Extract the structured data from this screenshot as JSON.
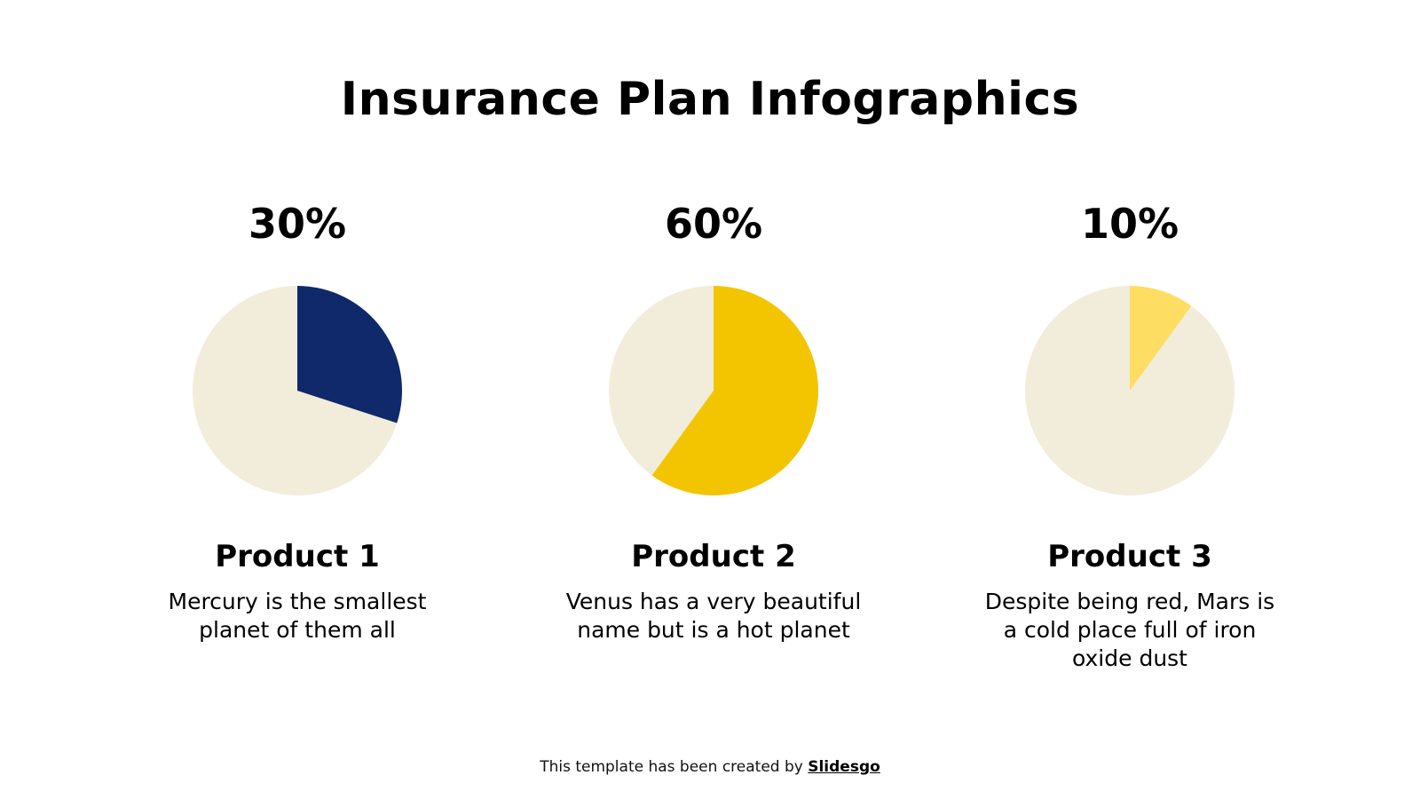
{
  "title": "Insurance Plan Infographics",
  "chart_data": [
    {
      "type": "pie",
      "label": "30%",
      "value": 30,
      "title": "Product 1",
      "description": "Mercury is the smallest planet of them all",
      "accent_color": "#10296b",
      "base_color": "#f2ecdb"
    },
    {
      "type": "pie",
      "label": "60%",
      "value": 60,
      "title": "Product 2",
      "description": "Venus has a very beautiful name but is a hot planet",
      "accent_color": "#f2c500",
      "base_color": "#f2ecdb"
    },
    {
      "type": "pie",
      "label": "10%",
      "value": 10,
      "title": "Product 3",
      "description": "Despite being red, Mars is a cold place full of iron oxide dust",
      "accent_color": "#fedd63",
      "base_color": "#f2ecdb"
    }
  ],
  "footer": {
    "prefix": "This template has been created by ",
    "brand": "Slidesgo"
  }
}
